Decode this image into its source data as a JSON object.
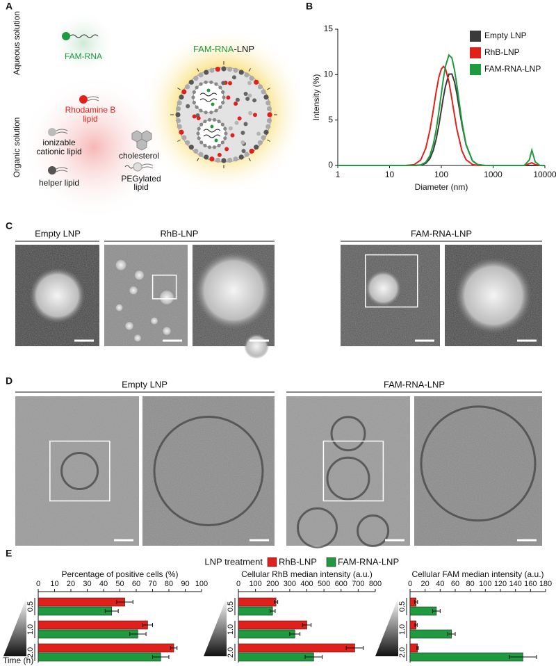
{
  "panel_labels": [
    "A",
    "B",
    "C",
    "D",
    "E"
  ],
  "diagram": {
    "aqueous": "Aqueous solution",
    "organic": "Organic solution",
    "fam_rna": "FAM-RNA",
    "rhodamine": [
      "Rhodamine B",
      "lipid"
    ],
    "ionizable": [
      "ionizable",
      "cationic lipid"
    ],
    "cholesterol": "cholesterol",
    "helper": "helper lipid",
    "peg": [
      "PEGylated",
      "lipid"
    ],
    "lnp_title": [
      "FAM-RNA",
      "-LNP"
    ]
  },
  "micrographs": {
    "negative_stain": [
      "Empty LNP",
      "RhB-LNP",
      "FAM-RNA-LNP"
    ],
    "cryo_em": [
      "Empty LNP",
      "FAM-RNA-LNP"
    ]
  },
  "legend_title": "LNP treatment",
  "chart_data": [
    {
      "type": "line",
      "xlabel": "Diameter (nm)",
      "ylabel": "Intensity (%)",
      "xscale": "log",
      "legend": "upper right",
      "x": [
        1,
        20,
        30,
        40,
        50,
        60,
        70,
        80,
        90,
        100,
        110,
        120,
        140,
        160,
        180,
        200,
        250,
        300,
        400,
        500,
        700,
        1000,
        3000,
        4000,
        5000,
        5600,
        6500,
        8000,
        10000
      ],
      "xlim": [
        1,
        10000
      ],
      "xticks": [
        1,
        10,
        100,
        1000,
        10000
      ],
      "ylim": [
        0,
        15
      ],
      "yticks": [
        0,
        5,
        10,
        15
      ],
      "series": [
        {
          "name": "Empty LNP",
          "color": "#3a3a3a",
          "values": [
            0,
            0,
            0,
            0.04,
            0.23,
            0.74,
            1.67,
            2.96,
            4.5,
            6.1,
            7.55,
            8.7,
            10.05,
            10.07,
            9.2,
            7.86,
            4.5,
            2.27,
            0.51,
            0.11,
            0,
            0,
            0,
            0,
            0,
            0,
            0,
            0,
            0
          ]
        },
        {
          "name": "RhB-LNP",
          "color": "#e0201b",
          "values": [
            0,
            0,
            0.09,
            0.6,
            1.88,
            3.85,
            6.1,
            8.2,
            9.75,
            10.6,
            10.9,
            10.67,
            9.24,
            7.3,
            5.5,
            3.97,
            1.61,
            0.64,
            0.1,
            0.01,
            0,
            0,
            0,
            0,
            0.2,
            0.3,
            0.1,
            0,
            0
          ]
        },
        {
          "name": "FAM-RNA-LNP",
          "color": "#1f9a3f",
          "values": [
            0,
            0,
            0,
            0.07,
            0.35,
            1.07,
            2.32,
            4.0,
            6.0,
            7.9,
            9.6,
            10.9,
            12.15,
            11.84,
            10.5,
            8.8,
            4.8,
            2.34,
            0.5,
            0.1,
            0,
            0,
            0,
            0,
            0.6,
            1.7,
            0.4,
            0,
            0
          ]
        }
      ]
    },
    {
      "type": "barh",
      "title": "Percentage of positive cells (%)",
      "ylabel": "Time (h)",
      "categories": [
        "0.5",
        "1.0",
        "2.0"
      ],
      "xlim": [
        0,
        100
      ],
      "xticks": [
        0,
        10,
        20,
        30,
        40,
        50,
        60,
        70,
        80,
        90,
        100
      ],
      "series": [
        {
          "name": "RhB-LNP",
          "color": "#e0201b",
          "values": [
            53,
            67,
            83
          ],
          "errors": [
            5,
            3,
            2
          ]
        },
        {
          "name": "FAM-RNA-LNP",
          "color": "#1f9a3f",
          "values": [
            45,
            61,
            75
          ],
          "errors": [
            4,
            5,
            5
          ]
        }
      ]
    },
    {
      "type": "barh",
      "title": "Cellular RhB median intensity (a.u.)",
      "categories": [
        "0.5",
        "1.0",
        "2.0"
      ],
      "xlim": [
        0,
        800
      ],
      "xticks": [
        0,
        100,
        200,
        300,
        400,
        500,
        600,
        700,
        800
      ],
      "series": [
        {
          "color": "#e0201b",
          "values": [
            220,
            400,
            680
          ],
          "errors": [
            10,
            25,
            50
          ]
        },
        {
          "color": "#1f9a3f",
          "values": [
            200,
            330,
            440
          ],
          "errors": [
            15,
            30,
            50
          ]
        }
      ]
    },
    {
      "type": "barh",
      "title": "Cellular FAM median intensity (a.u.)",
      "categories": [
        "0.5",
        "1.0",
        "2.0"
      ],
      "xlim": [
        0,
        180
      ],
      "xticks": [
        0,
        20,
        40,
        60,
        80,
        100,
        120,
        140,
        160,
        180
      ],
      "series": [
        {
          "color": "#e0201b",
          "values": [
            8,
            8,
            10
          ],
          "errors": [
            2,
            1.5,
            1
          ]
        },
        {
          "color": "#1f9a3f",
          "values": [
            35,
            55,
            150
          ],
          "errors": [
            5,
            5,
            18
          ]
        }
      ]
    }
  ]
}
